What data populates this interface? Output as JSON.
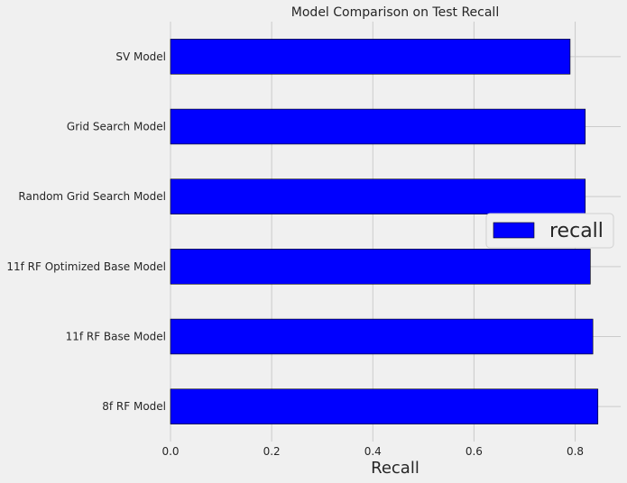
{
  "chart_data": {
    "type": "bar",
    "orientation": "horizontal",
    "title": "Model Comparison on Test Recall",
    "xlabel": "Recall",
    "ylabel": "",
    "categories": [
      "SV Model",
      "Grid Search Model",
      "Random Grid Search Model",
      "11f RF Optimized Base Model",
      "11f RF Base Model",
      "8f RF Model"
    ],
    "series": [
      {
        "name": "recall",
        "values": [
          0.79,
          0.82,
          0.82,
          0.83,
          0.835,
          0.845
        ],
        "color": "#0000ff"
      }
    ],
    "xlim": [
      0,
      0.89
    ],
    "xticks": [
      "0.0",
      "0.2",
      "0.4",
      "0.6",
      "0.8"
    ],
    "grid": true,
    "legend_position": "center-right",
    "background": "#f0f0f0"
  }
}
